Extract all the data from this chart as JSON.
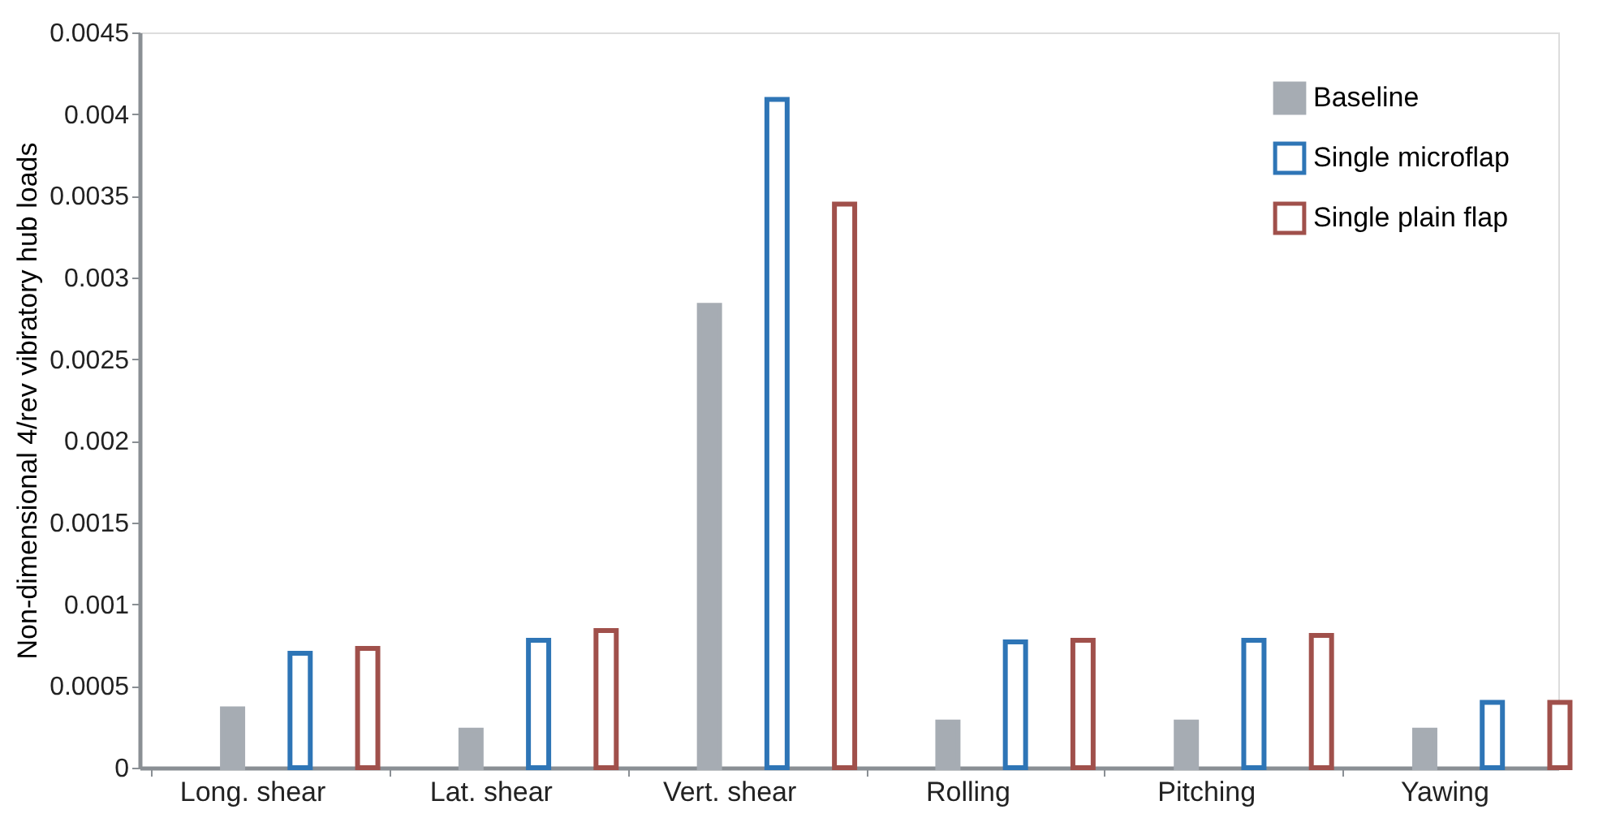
{
  "chart_data": {
    "type": "bar",
    "ylabel": "Non-dimensional 4/rev vibratory hub loads",
    "categories": [
      "Long. shear",
      "Lat. shear",
      "Vert. shear",
      "Rolling",
      "Pitching",
      "Yawing"
    ],
    "series": [
      {
        "name": "Baseline",
        "color": "#a6acb3",
        "values": [
          0.00036,
          0.00023,
          0.00283,
          0.00028,
          0.00028,
          0.00023
        ]
      },
      {
        "name": "Single microflap",
        "color": "#2e75b6",
        "values": [
          0.0007,
          0.00078,
          0.00409,
          0.00077,
          0.00078,
          0.0004
        ]
      },
      {
        "name": "Single plain flap",
        "color": "#a0504b",
        "values": [
          0.00073,
          0.00084,
          0.00345,
          0.00078,
          0.00081,
          0.0004
        ]
      }
    ],
    "ylim": [
      0,
      0.0045
    ],
    "yticks": [
      0,
      0.0005,
      0.001,
      0.0015,
      0.002,
      0.0025,
      0.003,
      0.0035,
      0.004,
      0.0045
    ],
    "grid": false,
    "legend": "top right"
  }
}
